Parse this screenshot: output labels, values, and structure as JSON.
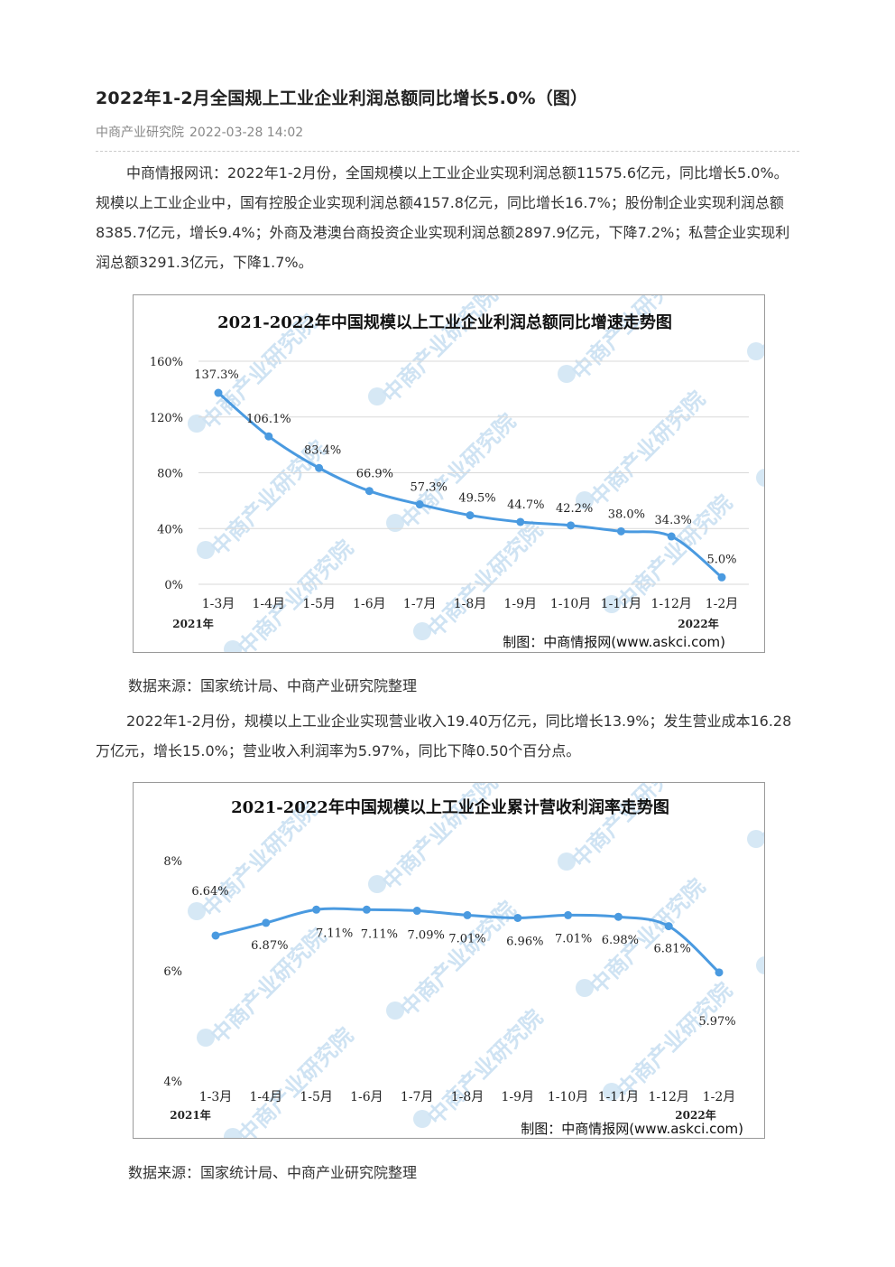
{
  "article": {
    "title": "2022年1-2月全国规上工业企业利润总额同比增长5.0%（图）",
    "source_org": "中商产业研究院",
    "datetime": "2022-03-28 14:02",
    "paragraph1": "中商情报网讯：2022年1-2月份，全国规模以上工业企业实现利润总额11575.6亿元，同比增长5.0%。规模以上工业企业中，国有控股企业实现利润总额4157.8亿元，同比增长16.7%；股份制企业实现利润总额8385.7亿元，增长9.4%；外商及港澳台商投资企业实现利润总额2897.9亿元，下降7.2%；私营企业实现利润总额3291.3亿元，下降1.7%。",
    "source_note1": "数据来源：国家统计局、中商产业研究院整理",
    "paragraph2": "2022年1-2月份，规模以上工业企业实现营业收入19.40万亿元，同比增长13.9%；发生营业成本16.28万亿元，增长15.0%；营业收入利润率为5.97%，同比下降0.50个百分点。",
    "source_note2": "数据来源：国家统计局、中商产业研究院整理"
  },
  "watermark_text": "中商产业研究院",
  "colors": {
    "series": "#4a9ae0",
    "grid": "#d9d9d9"
  },
  "chart_data": [
    {
      "type": "line",
      "title": "2021-2022年中国规模以上工业企业利润总额同比增速走势图",
      "categories": [
        "1-3月",
        "1-4月",
        "1-5月",
        "1-6月",
        "1-7月",
        "1-8月",
        "1-9月",
        "1-10月",
        "1-11月",
        "1-12月",
        "1-2月"
      ],
      "year_labels": {
        "first": "2021年",
        "last": "2022年"
      },
      "values": [
        137.3,
        106.1,
        83.4,
        66.9,
        57.3,
        49.5,
        44.7,
        42.2,
        38.0,
        34.3,
        5.0
      ],
      "data_labels": [
        "137.3%",
        "106.1%",
        "83.4%",
        "66.9%",
        "57.3%",
        "49.5%",
        "44.7%",
        "42.2%",
        "38.0%",
        "34.3%",
        "5.0%"
      ],
      "ylim": [
        0,
        160
      ],
      "yticks": [
        0,
        40,
        80,
        120,
        160
      ],
      "ytick_labels": [
        "0%",
        "40%",
        "80%",
        "120%",
        "160%"
      ],
      "grid": true,
      "credit": "制图：中商情报网(www.askci.com)"
    },
    {
      "type": "line",
      "title": "2021-2022年中国规模以上工业企业累计营收利润率走势图",
      "categories": [
        "1-3月",
        "1-4月",
        "1-5月",
        "1-6月",
        "1-7月",
        "1-8月",
        "1-9月",
        "1-10月",
        "1-11月",
        "1-12月",
        "1-2月"
      ],
      "year_labels": {
        "first": "2021年",
        "last": "2022年"
      },
      "values": [
        6.64,
        6.87,
        7.11,
        7.11,
        7.09,
        7.01,
        6.96,
        7.01,
        6.98,
        6.81,
        5.97
      ],
      "data_labels": [
        "6.64%",
        "6.87%",
        "7.11%",
        "7.11%",
        "7.09%",
        "7.01%",
        "6.96%",
        "7.01%",
        "6.98%",
        "6.81%",
        "5.97%"
      ],
      "ylim": [
        4,
        8
      ],
      "yticks": [
        4,
        6,
        8
      ],
      "ytick_labels": [
        "4%",
        "6%",
        "8%"
      ],
      "grid": false,
      "credit": "制图：中商情报网(www.askci.com)"
    }
  ]
}
